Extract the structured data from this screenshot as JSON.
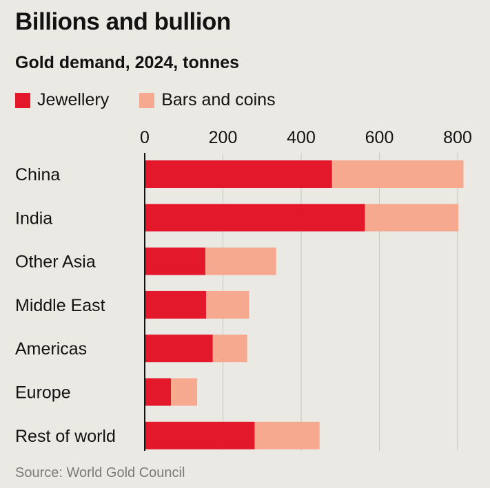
{
  "header": {
    "title": "Billions and bullion",
    "subtitle": "Gold demand, 2024, tonnes"
  },
  "colors": {
    "jewellery": "#e3192b",
    "bars_and_coins": "#f6a98f",
    "gridline": "#c9c6c0",
    "axis": "#121212"
  },
  "chart_data": {
    "type": "bar",
    "orientation": "horizontal",
    "stacked": true,
    "title": "Billions and bullion",
    "subtitle": "Gold demand, 2024, tonnes",
    "categories": [
      "China",
      "India",
      "Other Asia",
      "Middle East",
      "Americas",
      "Europe",
      "Rest of world"
    ],
    "series": [
      {
        "name": "Jewellery",
        "values": [
          479,
          563,
          155,
          157,
          174,
          67,
          281
        ]
      },
      {
        "name": "Bars and coins",
        "values": [
          336,
          239,
          181,
          110,
          88,
          67,
          166
        ]
      }
    ],
    "xlim": [
      0,
      820
    ],
    "xticks": [
      0,
      200,
      400,
      600,
      800
    ],
    "grid": true,
    "legend": "top-left"
  },
  "source": "Source: World Gold Council"
}
